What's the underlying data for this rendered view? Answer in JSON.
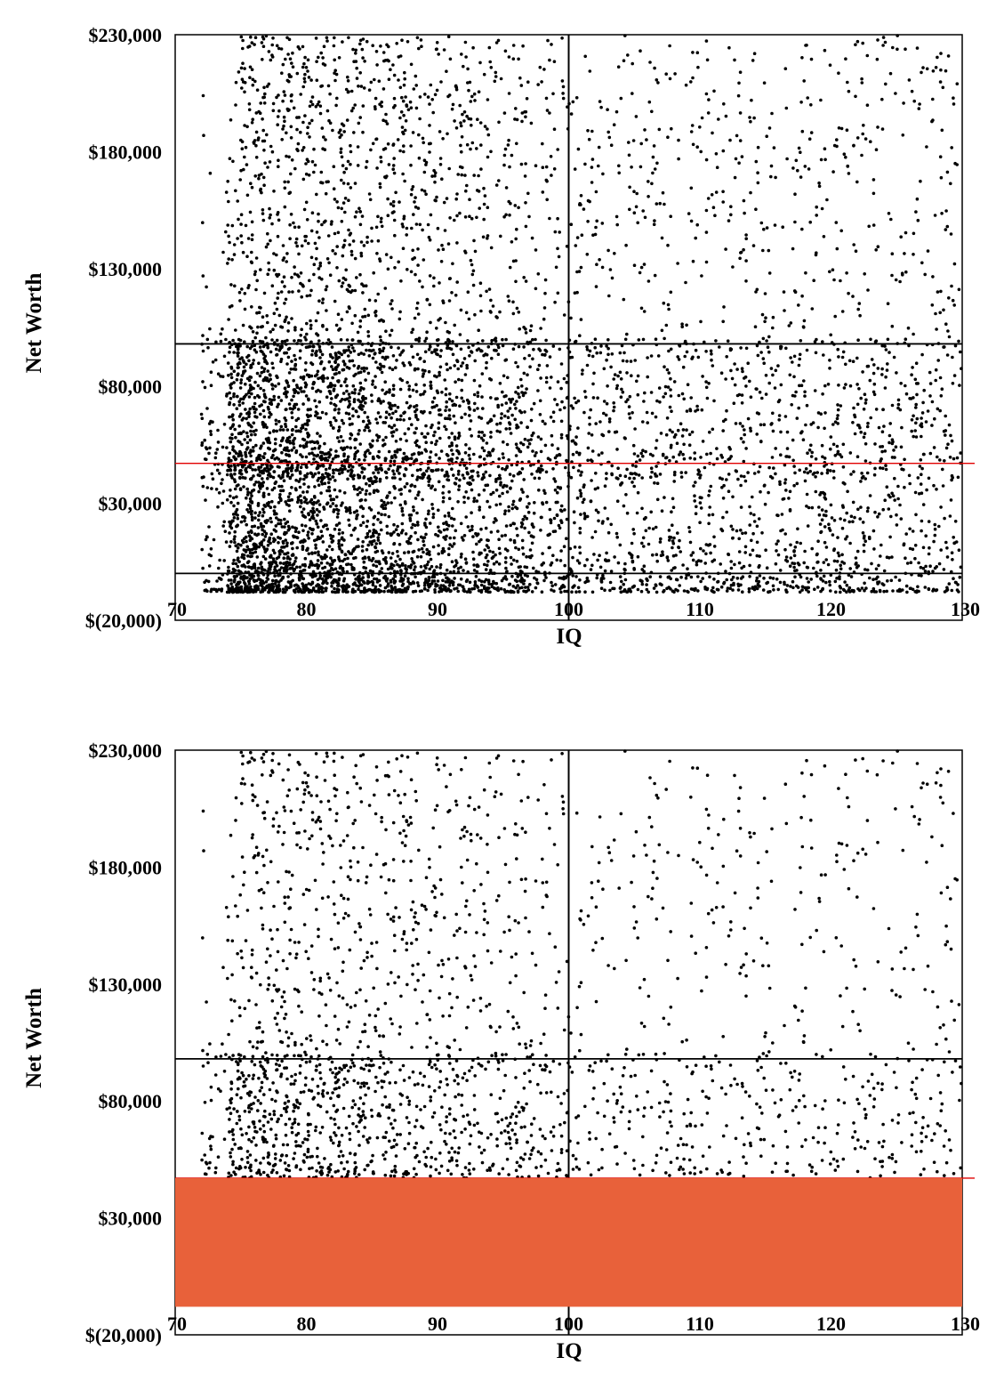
{
  "charts": [
    {
      "chart_data": {
        "type": "scatter",
        "title": "",
        "xlabel": "IQ",
        "ylabel": "Net Worth",
        "xlim": [
          70,
          130
        ],
        "ylim": [
          -20000,
          230000
        ],
        "x_ticks": [
          "70",
          "80",
          "90",
          "100",
          "110",
          "120",
          "130"
        ],
        "y_ticks": [
          "$230,000",
          "$180,000",
          "$130,000",
          "$80,000",
          "$30,000",
          "$(20,000)"
        ],
        "reference_lines": [
          {
            "orientation": "vertical",
            "value": 100,
            "color": "#000000"
          },
          {
            "orientation": "horizontal",
            "value": 98000,
            "color": "#000000"
          },
          {
            "orientation": "horizontal",
            "value": 0,
            "color": "#000000"
          },
          {
            "orientation": "horizontal",
            "value": 47000,
            "color": "#e00000"
          }
        ],
        "grid": false,
        "point_color": "#000000",
        "approx_point_count": 7000,
        "occlusion": null
      }
    },
    {
      "chart_data": {
        "type": "scatter",
        "title": "",
        "xlabel": "IQ",
        "ylabel": "Net Worth",
        "xlim": [
          70,
          130
        ],
        "ylim": [
          -20000,
          230000
        ],
        "x_ticks": [
          "70",
          "80",
          "90",
          "100",
          "110",
          "120",
          "130"
        ],
        "y_ticks": [
          "$230,000",
          "$180,000",
          "$130,000",
          "$80,000",
          "$30,000",
          "$(20,000)"
        ],
        "reference_lines": [
          {
            "orientation": "vertical",
            "value": 100,
            "color": "#000000"
          },
          {
            "orientation": "horizontal",
            "value": 98000,
            "color": "#000000"
          },
          {
            "orientation": "horizontal",
            "value": 47000,
            "color": "#e00000"
          }
        ],
        "grid": false,
        "point_color": "#000000",
        "approx_point_count": 4000,
        "occlusion": {
          "y_from": -8000,
          "y_to": 47000,
          "color": "#e8613a"
        }
      }
    }
  ]
}
